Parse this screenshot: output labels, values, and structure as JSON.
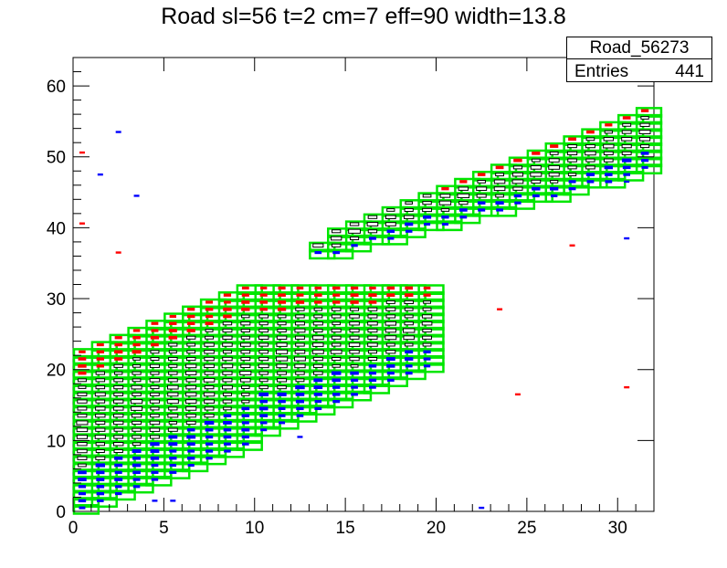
{
  "chart_data": {
    "type": "heatmap",
    "title": "Road sl=56 t=2 cm=7 eff=90 width=13.8",
    "xlim": [
      0,
      32
    ],
    "ylim": [
      0,
      64
    ],
    "x_ticks": [
      0,
      5,
      10,
      15,
      20,
      25,
      30
    ],
    "y_ticks": [
      0,
      10,
      20,
      30,
      40,
      50,
      60
    ],
    "x_tick_labels": [
      "0",
      "5",
      "10",
      "15",
      "20",
      "25",
      "30"
    ],
    "y_tick_labels": [
      "0",
      "10",
      "20",
      "30",
      "40",
      "50",
      "60"
    ],
    "stats_box": {
      "name": "Road_56273",
      "entries_label": "Entries",
      "entries_value": "441"
    },
    "colors": {
      "road": "#00e600",
      "hit_red": "#ff0000",
      "hit_blue": "#0000ff",
      "hit_black": "#000000"
    },
    "road_segments": [
      {
        "x_from": 0,
        "x_to": 20,
        "y_lo_at_x0": 0,
        "y_lo_step": 1.1,
        "y_hi_at_x0": 23,
        "y_hi_step": 1,
        "y_hi_max": 31.8
      },
      {
        "x_from": 13,
        "x_to": 32,
        "y_lo_at_x13": 36,
        "y_lo_step": 0.68,
        "y_hi_at_x13": 38,
        "y_hi_step": 1.05,
        "y_hi_max": 58
      }
    ],
    "outlier_hits": [
      {
        "x": 2.5,
        "y": 53.5,
        "color": "blue"
      },
      {
        "x": 0.5,
        "y": 50.6,
        "color": "red"
      },
      {
        "x": 1.5,
        "y": 47.5,
        "color": "blue"
      },
      {
        "x": 3.5,
        "y": 44.5,
        "color": "blue"
      },
      {
        "x": 0.5,
        "y": 40.6,
        "color": "red"
      },
      {
        "x": 2.5,
        "y": 36.5,
        "color": "red"
      },
      {
        "x": 4.5,
        "y": 1.5,
        "color": "blue"
      },
      {
        "x": 5.5,
        "y": 1.5,
        "color": "blue"
      },
      {
        "x": 12.5,
        "y": 10.5,
        "color": "blue"
      },
      {
        "x": 13.5,
        "y": 16.5,
        "color": "blue"
      },
      {
        "x": 22.5,
        "y": 0.5,
        "color": "blue"
      },
      {
        "x": 24.5,
        "y": 16.5,
        "color": "red"
      },
      {
        "x": 23.5,
        "y": 28.5,
        "color": "red"
      },
      {
        "x": 27.5,
        "y": 37.5,
        "color": "red"
      },
      {
        "x": 30.5,
        "y": 17.5,
        "color": "red"
      },
      {
        "x": 30.5,
        "y": 38.5,
        "color": "blue"
      },
      {
        "x": 30.5,
        "y": 46.5,
        "color": "blue"
      }
    ]
  }
}
